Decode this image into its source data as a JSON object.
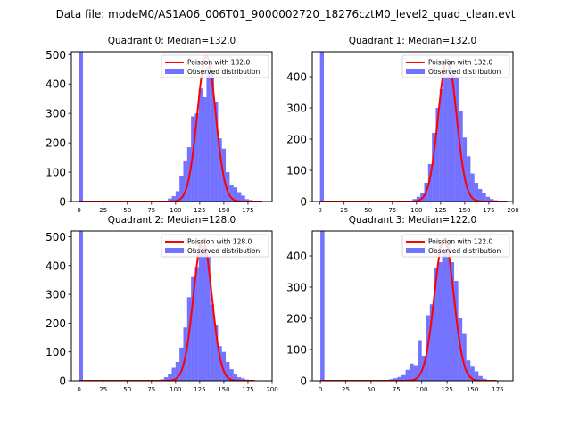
{
  "figure": {
    "suptitle": "Data file: modeM0/AS1A06_006T01_9000002720_18276cztM0_level2_quad_clean.evt"
  },
  "chart_data": [
    {
      "type": "bar",
      "title": "Quadrant 0: Median=132.0",
      "median": 132.0,
      "xlim": [
        -8,
        200
      ],
      "ylim": [
        0,
        510
      ],
      "xticks": [
        0,
        25,
        50,
        75,
        100,
        125,
        150,
        175
      ],
      "yticks": [
        0,
        100,
        200,
        300,
        400,
        500
      ],
      "bin_width": 4,
      "bins": [
        [
          0,
          510
        ],
        [
          92,
          10
        ],
        [
          96,
          18
        ],
        [
          100,
          35
        ],
        [
          104,
          88
        ],
        [
          108,
          140
        ],
        [
          112,
          185
        ],
        [
          116,
          290
        ],
        [
          120,
          300
        ],
        [
          124,
          385
        ],
        [
          128,
          355
        ],
        [
          132,
          460
        ],
        [
          136,
          440
        ],
        [
          140,
          340
        ],
        [
          144,
          215
        ],
        [
          148,
          180
        ],
        [
          152,
          100
        ],
        [
          156,
          55
        ],
        [
          160,
          48
        ],
        [
          164,
          32
        ],
        [
          168,
          20
        ],
        [
          172,
          8
        ],
        [
          176,
          5
        ],
        [
          180,
          3
        ],
        [
          184,
          2
        ]
      ],
      "fit": {
        "mean": 132,
        "amplitude": 495,
        "sigma": 9.5
      },
      "legend": {
        "fit_label": "Poisson with 132.0",
        "observed_label": "Observed distribution"
      }
    },
    {
      "type": "bar",
      "title": "Quadrant 1: Median=132.0",
      "median": 132.0,
      "xlim": [
        -8,
        200
      ],
      "ylim": [
        0,
        480
      ],
      "xticks": [
        0,
        25,
        50,
        75,
        100,
        125,
        150,
        175,
        200
      ],
      "yticks": [
        0,
        100,
        200,
        300,
        400
      ],
      "bin_width": 4,
      "bins": [
        [
          0,
          480
        ],
        [
          96,
          8
        ],
        [
          100,
          15
        ],
        [
          104,
          28
        ],
        [
          108,
          60
        ],
        [
          112,
          120
        ],
        [
          116,
          220
        ],
        [
          120,
          300
        ],
        [
          124,
          360
        ],
        [
          128,
          400
        ],
        [
          132,
          450
        ],
        [
          136,
          420
        ],
        [
          140,
          400
        ],
        [
          144,
          290
        ],
        [
          148,
          205
        ],
        [
          152,
          145
        ],
        [
          156,
          90
        ],
        [
          160,
          60
        ],
        [
          164,
          40
        ],
        [
          168,
          28
        ],
        [
          172,
          15
        ],
        [
          176,
          8
        ],
        [
          180,
          4
        ],
        [
          184,
          2
        ],
        [
          188,
          1
        ]
      ],
      "fit": {
        "mean": 132,
        "amplitude": 455,
        "sigma": 9.5
      },
      "legend": {
        "fit_label": "Poission with 132.0",
        "observed_label": "Observed distribution"
      }
    },
    {
      "type": "bar",
      "title": "Quadrant 2: Median=128.0",
      "median": 128.0,
      "xlim": [
        -8,
        200
      ],
      "ylim": [
        0,
        520
      ],
      "xticks": [
        0,
        25,
        50,
        75,
        100,
        125,
        150,
        175,
        200
      ],
      "yticks": [
        0,
        100,
        200,
        300,
        400,
        500
      ],
      "bin_width": 4,
      "bins": [
        [
          0,
          520
        ],
        [
          84,
          5
        ],
        [
          88,
          12
        ],
        [
          92,
          22
        ],
        [
          96,
          45
        ],
        [
          100,
          65
        ],
        [
          104,
          115
        ],
        [
          108,
          185
        ],
        [
          112,
          290
        ],
        [
          116,
          360
        ],
        [
          120,
          395
        ],
        [
          124,
          470
        ],
        [
          128,
          465
        ],
        [
          132,
          430
        ],
        [
          136,
          265
        ],
        [
          140,
          195
        ],
        [
          144,
          120
        ],
        [
          148,
          100
        ],
        [
          152,
          65
        ],
        [
          156,
          40
        ],
        [
          160,
          22
        ],
        [
          164,
          12
        ],
        [
          168,
          8
        ],
        [
          172,
          4
        ],
        [
          176,
          2
        ]
      ],
      "fit": {
        "mean": 128,
        "amplitude": 490,
        "sigma": 9.5
      },
      "legend": {
        "fit_label": "Poission with 128.0",
        "observed_label": "Observed distribution"
      }
    },
    {
      "type": "bar",
      "title": "Quadrant 3: Median=122.0",
      "median": 122.0,
      "xlim": [
        -8,
        190
      ],
      "ylim": [
        0,
        480
      ],
      "xticks": [
        0,
        25,
        50,
        75,
        100,
        125,
        150,
        175
      ],
      "yticks": [
        0,
        100,
        200,
        300,
        400
      ],
      "bin_width": 4,
      "bins": [
        [
          0,
          480
        ],
        [
          64,
          3
        ],
        [
          68,
          5
        ],
        [
          72,
          8
        ],
        [
          76,
          12
        ],
        [
          80,
          18
        ],
        [
          84,
          35
        ],
        [
          88,
          55
        ],
        [
          92,
          50
        ],
        [
          96,
          130
        ],
        [
          100,
          80
        ],
        [
          104,
          210
        ],
        [
          108,
          245
        ],
        [
          112,
          360
        ],
        [
          116,
          380
        ],
        [
          120,
          420
        ],
        [
          124,
          450
        ],
        [
          128,
          380
        ],
        [
          132,
          320
        ],
        [
          136,
          200
        ],
        [
          140,
          150
        ],
        [
          144,
          65
        ],
        [
          148,
          45
        ],
        [
          152,
          30
        ],
        [
          156,
          15
        ],
        [
          160,
          6
        ],
        [
          164,
          3
        ],
        [
          168,
          2
        ]
      ],
      "fit": {
        "mean": 122,
        "amplitude": 455,
        "sigma": 9.5
      },
      "legend": {
        "fit_label": "Poission with 122.0",
        "observed_label": "Observed distribution"
      }
    }
  ]
}
